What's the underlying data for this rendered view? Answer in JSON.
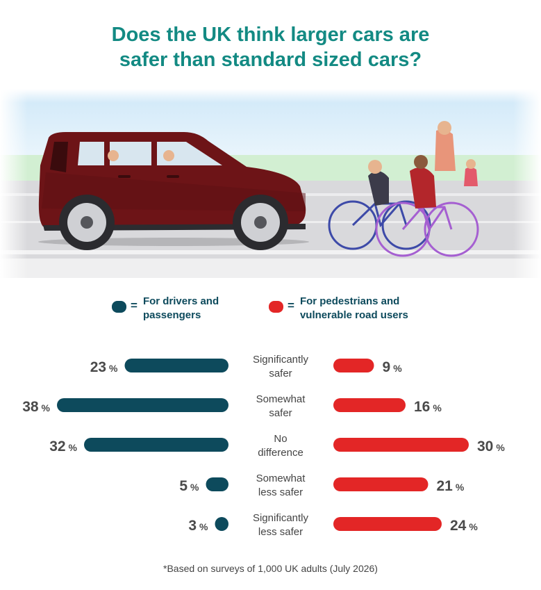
{
  "title": {
    "line1": "Does the UK think larger cars are",
    "line2": "safer than standard sized cars?"
  },
  "legend": {
    "equals": "=",
    "drivers": {
      "line1": "For drivers and",
      "line2": "passengers",
      "color": "#0d4a5c"
    },
    "pedestrians": {
      "line1": "For pedestrians and",
      "line2": "vulnerable road users",
      "color": "#e32626"
    }
  },
  "chart_data": {
    "type": "bar",
    "orientation": "horizontal-diverging",
    "categories": [
      [
        "Significantly",
        "safer"
      ],
      [
        "Somewhat",
        "safer"
      ],
      [
        "No",
        "difference"
      ],
      [
        "Somewhat",
        "less safer"
      ],
      [
        "Significantly",
        "less safer"
      ]
    ],
    "unit": "%",
    "series": [
      {
        "name": "For drivers and passengers",
        "values": [
          23,
          38,
          32,
          5,
          3
        ],
        "color": "#0d4a5c"
      },
      {
        "name": "For pedestrians and vulnerable road users",
        "values": [
          9,
          16,
          30,
          21,
          24
        ],
        "color": "#e32626"
      }
    ]
  },
  "footnote": "*Based on surveys of 1,000 UK adults (July 2026)"
}
